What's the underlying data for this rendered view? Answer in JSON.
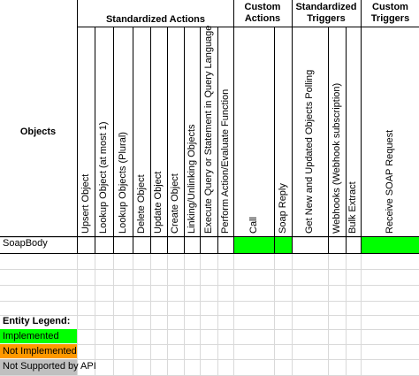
{
  "header": {
    "objects_label": "Objects",
    "groups": [
      {
        "label": "Standardized Actions"
      },
      {
        "label": "Custom Actions"
      },
      {
        "label": "Standardized Triggers"
      },
      {
        "label": "Custom Triggers"
      }
    ]
  },
  "columns": [
    "Upsert Object",
    "Lookup Object (at most 1)",
    "Lookup Objects (Plural)",
    "Delete Object",
    "Update Object",
    "Create Object",
    "Linking/Unlinking Objects",
    "Execute Query or Statement in Query Language",
    "Perform Action/Evaluate Function",
    "Call",
    "Soap Reply",
    "Get New and Updated Objects Polling",
    "Webhooks (Webhook subscription)",
    "Bulk Extract",
    "Receive SOAP Request"
  ],
  "rows": [
    {
      "object": "SoapBody",
      "status": [
        "",
        "",
        "",
        "",
        "",
        "",
        "",
        "",
        "",
        "implemented",
        "implemented",
        "",
        "",
        "",
        "implemented"
      ]
    }
  ],
  "legend": {
    "title": "Entity Legend:",
    "items": [
      {
        "label": "Implemented",
        "color": "#00ff00"
      },
      {
        "label": "Not Implemented",
        "color": "#ff9900"
      },
      {
        "label": "Not Supported by API",
        "color": "#c0c0c0"
      }
    ]
  }
}
